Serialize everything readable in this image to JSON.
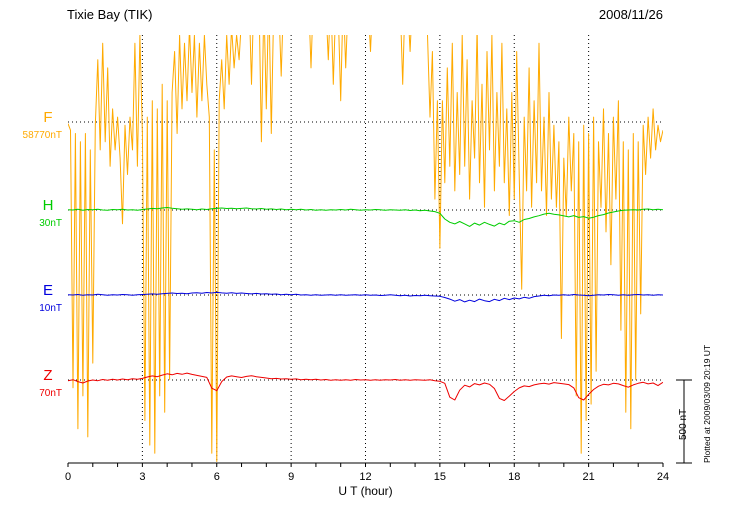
{
  "header": {
    "title": "Tixie Bay (TIK)",
    "date": "2008/11/26"
  },
  "axis": {
    "xlabel": "U T (hour)"
  },
  "scale_bar": {
    "label": "500 nT"
  },
  "footer_note": "Plotted at 2009/03/09 20:19 UT",
  "chart_data": {
    "type": "line",
    "title": "Tixie Bay (TIK)",
    "date": "2008/11/26",
    "xlabel": "U T (hour)",
    "x_range": [
      0,
      24
    ],
    "x_ticks": [
      0,
      3,
      6,
      9,
      12,
      15,
      18,
      21,
      24
    ],
    "x_minor_tick_step": 1,
    "grid": {
      "vertical_dotted_at": [
        3,
        6,
        9,
        12,
        15,
        18,
        21
      ],
      "horizontal_dotted_at_baselines": true
    },
    "scale_bar": {
      "nT": 500,
      "label": "500 nT"
    },
    "series": [
      {
        "name": "F",
        "label": "F",
        "baseline_label": "58770nT",
        "baseline_value": 58770,
        "color": "#ffaa00",
        "x_start": 0,
        "x_step": 0.1,
        "values": [
          58760,
          58720,
          57150,
          58700,
          56900,
          58650,
          57100,
          58700,
          56850,
          58600,
          57300,
          58750,
          59150,
          58600,
          59250,
          58650,
          59100,
          58500,
          58850,
          58600,
          58800,
          58550,
          58150,
          58750,
          58450,
          58800,
          58600,
          59250,
          58500,
          59300,
          58700,
          56950,
          58800,
          56800,
          58900,
          56750,
          58850,
          57100,
          59000,
          57000,
          58900,
          57200,
          58950,
          59200,
          58700,
          59300,
          58850,
          59250,
          58900,
          59350,
          58950,
          59300,
          58800,
          59250,
          58900,
          59300,
          59000,
          58800,
          56750,
          58600,
          56700,
          58900,
          59150,
          58850,
          59300,
          59000,
          59350,
          59100,
          59300,
          59150,
          59400,
          59550,
          59500,
          59550,
          59000,
          59550,
          59500,
          59550,
          58650,
          59500,
          58850,
          59550,
          58700,
          59500,
          59550,
          59500,
          59050,
          59550,
          59500,
          59550,
          59500,
          59550,
          59500,
          59550,
          59500,
          59550,
          59500,
          59550,
          59100,
          59550,
          59500,
          59550,
          59500,
          59550,
          59500,
          59150,
          59550,
          59000,
          59500,
          59450,
          58900,
          59550,
          59100,
          59500,
          59550,
          59500,
          59550,
          59500,
          59550,
          59500,
          59550,
          59500,
          59200,
          59550,
          59500,
          59550,
          59500,
          59550,
          59500,
          59550,
          59500,
          59550,
          59500,
          59550,
          59500,
          59000,
          59550,
          59500,
          59200,
          59550,
          59500,
          59550,
          59500,
          59550,
          59400,
          59300,
          58800,
          59200,
          58300,
          58900,
          58000,
          58900,
          58400,
          59100,
          58500,
          59250,
          58350,
          58950,
          58450,
          59300,
          58500,
          59150,
          58300,
          58900,
          58550,
          59350,
          58400,
          59000,
          58250,
          59200,
          58600,
          59300,
          58350,
          58950,
          58500,
          59250,
          58400,
          58850,
          58200,
          58950,
          58300,
          59200,
          58450,
          57750,
          58800,
          58350,
          59100,
          58250,
          58900,
          58400,
          59250,
          58350,
          58800,
          58200,
          58950,
          58300,
          58750,
          58250,
          58650,
          57450,
          58550,
          58200,
          58800,
          58350,
          58700,
          57100,
          58650,
          56750,
          58750,
          56950,
          58700,
          57050,
          58800,
          57250,
          58650,
          58250,
          58850,
          58100,
          58700,
          57900,
          58800,
          58300,
          58900,
          57500,
          58650,
          57000,
          58600,
          56900,
          58700,
          57200,
          58650,
          57600,
          58750,
          58450,
          58800,
          58550,
          58850,
          58600,
          58750,
          58650,
          58720
        ]
      },
      {
        "name": "H",
        "label": "H",
        "baseline_label": "30nT",
        "baseline_value": 30,
        "color": "#00cc00",
        "x_start": 0,
        "x_step": 0.2,
        "values": [
          32,
          30,
          34,
          29,
          33,
          31,
          35,
          30,
          28,
          33,
          31,
          34,
          30,
          32,
          29,
          33,
          36,
          40,
          38,
          42,
          45,
          41,
          38,
          35,
          37,
          34,
          32,
          36,
          33,
          38,
          40,
          42,
          39,
          41,
          38,
          40,
          42,
          38,
          36,
          39,
          35,
          37,
          33,
          36,
          32,
          34,
          31,
          35,
          30,
          33,
          29,
          32,
          28,
          31,
          30,
          33,
          30,
          34,
          31,
          29,
          32,
          30,
          33,
          31,
          29,
          32,
          30,
          28,
          31,
          27,
          30,
          26,
          28,
          24,
          20,
          10,
          -25,
          -45,
          -55,
          -40,
          -55,
          -70,
          -50,
          -62,
          -45,
          -58,
          -68,
          -50,
          -60,
          -38,
          -35,
          -45,
          -28,
          -22,
          -12,
          -5,
          5,
          10,
          4,
          0,
          -6,
          -12,
          -4,
          -15,
          -10,
          -20,
          -14,
          -4,
          2,
          12,
          18,
          24,
          28,
          30,
          32,
          30,
          34,
          36,
          32,
          34,
          31
        ]
      },
      {
        "name": "E",
        "label": "E",
        "baseline_label": "10nT",
        "baseline_value": 10,
        "color": "#0000dd",
        "x_start": 0,
        "x_step": 0.2,
        "values": [
          12,
          10,
          13,
          9,
          12,
          10,
          14,
          11,
          9,
          12,
          10,
          13,
          11,
          9,
          12,
          13,
          15,
          17,
          14,
          18,
          20,
          22,
          19,
          21,
          18,
          22,
          24,
          21,
          25,
          22,
          26,
          23,
          21,
          24,
          20,
          22,
          19,
          17,
          20,
          16,
          18,
          14,
          16,
          12,
          14,
          12,
          14,
          10,
          12,
          9,
          11,
          8,
          10,
          12,
          9,
          11,
          8,
          10,
          12,
          9,
          11,
          8,
          10,
          7,
          9,
          11,
          8,
          5,
          8,
          4,
          7,
          5,
          8,
          6,
          4,
          2,
          -5,
          -15,
          -28,
          -18,
          -32,
          -22,
          -30,
          -15,
          -25,
          -30,
          -16,
          -24,
          -10,
          -18,
          -8,
          -14,
          -4,
          -10,
          0,
          4,
          8,
          6,
          10,
          8,
          12,
          9,
          13,
          10,
          8,
          5,
          9,
          12,
          10,
          13,
          11,
          9,
          12,
          8,
          11,
          13,
          10,
          12,
          9,
          12,
          10
        ]
      },
      {
        "name": "Z",
        "label": "Z",
        "baseline_label": "70nT",
        "baseline_value": 70,
        "color": "#ee0000",
        "x_start": 0,
        "x_step": 0.2,
        "values": [
          66,
          72,
          60,
          52,
          64,
          70,
          66,
          73,
          68,
          74,
          70,
          76,
          72,
          78,
          74,
          80,
          88,
          95,
          90,
          100,
          108,
          102,
          110,
          105,
          112,
          104,
          98,
          92,
          86,
          20,
          5,
          60,
          88,
          95,
          90,
          85,
          92,
          96,
          90,
          86,
          82,
          78,
          80,
          76,
          78,
          74,
          77,
          72,
          75,
          71,
          74,
          70,
          73,
          69,
          72,
          68,
          72,
          69,
          73,
          70,
          72,
          68,
          71,
          69,
          72,
          70,
          73,
          68,
          71,
          69,
          72,
          70,
          68,
          71,
          66,
          62,
          50,
          -35,
          -52,
          8,
          38,
          28,
          48,
          40,
          52,
          44,
          18,
          -42,
          -55,
          -28,
          0,
          22,
          34,
          30,
          40,
          46,
          50,
          45,
          54,
          50,
          46,
          42,
          22,
          -38,
          -52,
          -18,
          12,
          32,
          44,
          40,
          50,
          46,
          36,
          26,
          40,
          50,
          56,
          46,
          52,
          36,
          56
        ]
      }
    ]
  }
}
